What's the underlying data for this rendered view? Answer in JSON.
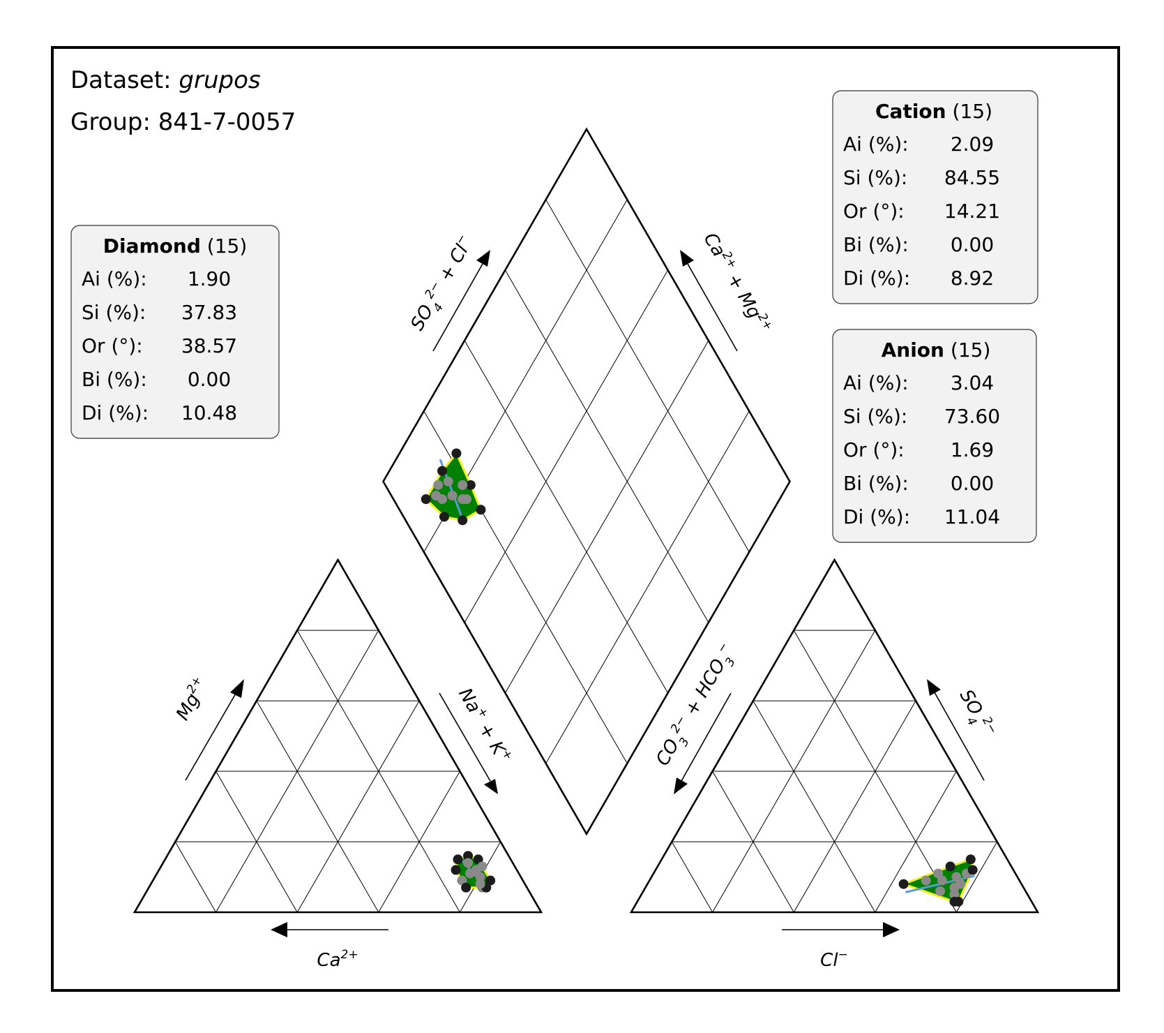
{
  "header": {
    "dataset_label": "Dataset: ",
    "dataset_value": "grupos",
    "group_label": "Group: 841-7-0057"
  },
  "colors": {
    "hull_fill": "#008000",
    "hull_edge": "#f5ee22",
    "outer_point": "#1c1c1c",
    "inner_point": "#8a8a8a",
    "axis_line": "#5b9bd5",
    "box_fill": "#f2f2f2"
  },
  "stats": {
    "diamond": {
      "title": "Diamond",
      "count": "(15)",
      "rows": [
        {
          "label": "Ai (%):",
          "value": "1.90"
        },
        {
          "label": "Si (%):",
          "value": "37.83"
        },
        {
          "label": "Or (°):",
          "value": "38.57"
        },
        {
          "label": "Bi (%):",
          "value": "0.00"
        },
        {
          "label": "Di (%):",
          "value": "10.48"
        }
      ]
    },
    "cation": {
      "title": "Cation",
      "count": "(15)",
      "rows": [
        {
          "label": "Ai (%):",
          "value": "2.09"
        },
        {
          "label": "Si (%):",
          "value": "84.55"
        },
        {
          "label": "Or (°):",
          "value": "14.21"
        },
        {
          "label": "Bi (%):",
          "value": "0.00"
        },
        {
          "label": "Di (%):",
          "value": "8.92"
        }
      ]
    },
    "anion": {
      "title": "Anion",
      "count": "(15)",
      "rows": [
        {
          "label": "Ai (%):",
          "value": "3.04"
        },
        {
          "label": "Si (%):",
          "value": "73.60"
        },
        {
          "label": "Or (°):",
          "value": "1.69"
        },
        {
          "label": "Bi (%):",
          "value": "0.00"
        },
        {
          "label": "Di (%):",
          "value": "11.04"
        }
      ]
    }
  },
  "chart_data": {
    "type": "scatter",
    "subtype": "piper-diagram",
    "axis_labels": {
      "cation_left": "Mg2+",
      "cation_right": "Na+ + K+",
      "cation_bottom": "Ca2+",
      "anion_left": "CO32- + HCO3-",
      "anion_right": "SO42-",
      "anion_bottom": "Cl-",
      "diamond_left": "SO42- + Cl-",
      "diamond_right": "Ca2+ + Mg2+"
    },
    "grid": true,
    "ticks": [
      0,
      20,
      40,
      60,
      80,
      100
    ],
    "cation_samples_pct_NaK_Mg": [
      [
        74,
        16
      ],
      [
        77,
        15
      ],
      [
        80,
        10
      ],
      [
        82,
        7
      ],
      [
        83,
        7
      ],
      [
        78,
        12
      ],
      [
        73,
        12
      ],
      [
        76,
        9
      ],
      [
        79,
        13
      ],
      [
        81,
        8
      ],
      [
        75,
        14
      ],
      [
        77,
        11
      ],
      [
        72,
        15
      ],
      [
        83,
        9
      ],
      [
        78,
        7
      ]
    ],
    "anion_samples_pct_Cl_SO4": [
      [
        63,
        8
      ],
      [
        72,
        13
      ],
      [
        76,
        15
      ],
      [
        77,
        11
      ],
      [
        77,
        5
      ],
      [
        78,
        3
      ],
      [
        79,
        3
      ],
      [
        76,
        7
      ],
      [
        72,
        9
      ],
      [
        68,
        9
      ],
      [
        75,
        10
      ],
      [
        78,
        12
      ],
      [
        73,
        6
      ],
      [
        70,
        11
      ],
      [
        77,
        8
      ]
    ],
    "diamond_samples_pct_SO4Cl_CaMg": [
      [
        72,
        20
      ],
      [
        78,
        21
      ],
      [
        86,
        22
      ],
      [
        87,
        16
      ],
      [
        87,
        8
      ],
      [
        86,
        13
      ],
      [
        80,
        10
      ],
      [
        75,
        14
      ],
      [
        78,
        17
      ],
      [
        84,
        16
      ],
      [
        83,
        12
      ],
      [
        77,
        18
      ],
      [
        81,
        15
      ],
      [
        85,
        11
      ],
      [
        80,
        19
      ]
    ]
  }
}
